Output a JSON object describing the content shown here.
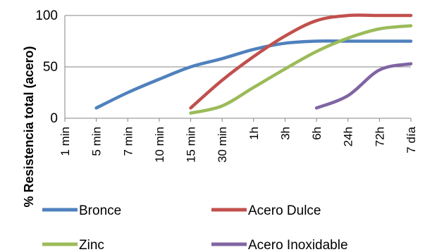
{
  "chart_data": {
    "type": "line",
    "title": "",
    "xlabel": "",
    "ylabel": "% Resistencia total (acero)",
    "ylim": [
      0,
      100
    ],
    "yticks": [
      0,
      50,
      100
    ],
    "categories": [
      "1 min",
      "5 min",
      "7 min",
      "10 min",
      "15 min",
      "30 min",
      "1h",
      "3h",
      "6h",
      "24h",
      "72h",
      "7 día"
    ],
    "grid": true,
    "legend": "bottom",
    "series": [
      {
        "name": "Bronce",
        "color": "#4f81bd",
        "values": [
          null,
          10,
          25,
          38,
          50,
          58,
          67,
          73,
          75,
          75,
          75,
          75
        ]
      },
      {
        "name": "Acero Dulce",
        "color": "#c0504d",
        "values": [
          null,
          null,
          null,
          null,
          10,
          37,
          60,
          80,
          95,
          100,
          100,
          100
        ]
      },
      {
        "name": "Zinc",
        "color": "#9bbb59",
        "values": [
          null,
          null,
          null,
          null,
          5,
          12,
          30,
          48,
          65,
          78,
          87,
          90
        ]
      },
      {
        "name": "Acero Inoxidable",
        "color": "#8064a2",
        "values": [
          null,
          null,
          null,
          null,
          null,
          null,
          null,
          null,
          10,
          22,
          47,
          53
        ]
      }
    ]
  }
}
